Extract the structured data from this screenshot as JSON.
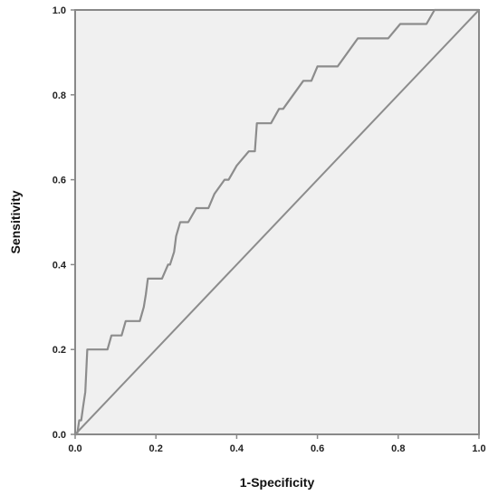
{
  "chart_data": {
    "type": "line",
    "title": "",
    "xlabel": "1-Specificity",
    "ylabel": "Sensitivity",
    "xlim": [
      0.0,
      1.0
    ],
    "ylim": [
      0.0,
      1.0
    ],
    "grid": false,
    "legend": "none",
    "x_ticks": [
      "0.0",
      "0.2",
      "0.4",
      "0.6",
      "0.8",
      "1.0"
    ],
    "y_ticks": [
      "0.0",
      "0.2",
      "0.4",
      "0.6",
      "0.8",
      "1.0"
    ],
    "colors": {
      "plot_background": "#f0f0f0",
      "axes": "#888888",
      "roc_line": "#8c8c8c",
      "reference_line": "#8c8c8c"
    },
    "series": [
      {
        "x": [
          0.0,
          0.005,
          0.01,
          0.015,
          0.02,
          0.025,
          0.03,
          0.08,
          0.09,
          0.115,
          0.125,
          0.16,
          0.17,
          0.175,
          0.18,
          0.215,
          0.23,
          0.235,
          0.245,
          0.25,
          0.26,
          0.28,
          0.3,
          0.33,
          0.345,
          0.37,
          0.38,
          0.4,
          0.43,
          0.445,
          0.45,
          0.485,
          0.505,
          0.515,
          0.565,
          0.585,
          0.6,
          0.65,
          0.7,
          0.775,
          0.805,
          0.87,
          0.89,
          1.0
        ],
        "y": [
          0.0,
          0.0,
          0.033,
          0.033,
          0.067,
          0.1,
          0.2,
          0.2,
          0.233,
          0.233,
          0.267,
          0.267,
          0.3,
          0.33,
          0.367,
          0.367,
          0.4,
          0.4,
          0.43,
          0.467,
          0.5,
          0.5,
          0.533,
          0.533,
          0.567,
          0.6,
          0.6,
          0.633,
          0.667,
          0.667,
          0.733,
          0.733,
          0.767,
          0.767,
          0.833,
          0.833,
          0.867,
          0.867,
          0.933,
          0.933,
          0.967,
          0.967,
          1.0,
          1.0
        ]
      },
      {
        "x": [
          0.0,
          1.0
        ],
        "y": [
          0.0,
          1.0
        ]
      }
    ]
  }
}
